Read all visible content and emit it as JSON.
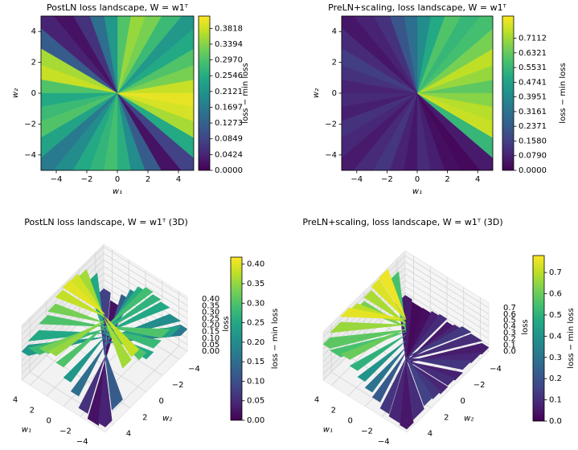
{
  "chart_data": [
    {
      "type": "contour",
      "title": "PostLN loss landscape, W = w1ᵀ",
      "xlabel": "w₁",
      "ylabel": "w₂",
      "xlim": [
        -5,
        5
      ],
      "ylim": [
        -5,
        5
      ],
      "xticks": [
        {
          "value": -4,
          "label": "−4"
        },
        {
          "value": -2,
          "label": "−2"
        },
        0,
        2,
        4
      ],
      "yticks": [
        {
          "value": -4,
          "label": "−4"
        },
        {
          "value": -2,
          "label": "−2"
        },
        0,
        2,
        4
      ],
      "angles": [
        0,
        10,
        20,
        30,
        40,
        50,
        60,
        70,
        80,
        90,
        100,
        110,
        120,
        130,
        140,
        150,
        160,
        170,
        180,
        190,
        200,
        210,
        220,
        230,
        240,
        250,
        260,
        270,
        280,
        290,
        300,
        310,
        320,
        330,
        340,
        350,
        360
      ],
      "values": [
        0.38,
        0.33,
        0.3,
        0.25,
        0.22,
        0.28,
        0.33,
        0.35,
        0.3,
        0.22,
        0.15,
        0.06,
        0.02,
        0.04,
        0.12,
        0.36,
        0.38,
        0.3,
        0.25,
        0.28,
        0.3,
        0.24,
        0.17,
        0.2,
        0.25,
        0.27,
        0.29,
        0.26,
        0.2,
        0.12,
        0.02,
        0.08,
        0.25,
        0.36,
        0.39,
        0.4
      ],
      "colormap": "viridis",
      "clim": [
        0,
        0.415
      ],
      "clabel": "loss − min loss",
      "cticks": [
        {
          "value": 0,
          "label": "0.0000"
        },
        0.0424,
        0.0849,
        0.1273,
        0.1697,
        0.2121,
        0.2546,
        {
          "value": 0.297,
          "label": "0.2970"
        },
        0.3394,
        0.3818
      ]
    },
    {
      "type": "contour",
      "title": "PreLN+scaling, loss landscape, W = w1ᵀ",
      "xlabel": "w₁",
      "ylabel": "w₂",
      "xlim": [
        -5,
        5
      ],
      "ylim": [
        -5,
        5
      ],
      "xticks": [
        {
          "value": -4,
          "label": "−4"
        },
        {
          "value": -2,
          "label": "−2"
        },
        0,
        2,
        4
      ],
      "yticks": [
        {
          "value": -4,
          "label": "−4"
        },
        {
          "value": -2,
          "label": "−2"
        },
        0,
        2,
        4
      ],
      "angles": [
        0,
        10,
        20,
        30,
        40,
        50,
        60,
        70,
        80,
        90,
        100,
        110,
        120,
        130,
        140,
        150,
        160,
        170,
        180,
        190,
        200,
        210,
        220,
        230,
        240,
        250,
        260,
        270,
        280,
        290,
        300,
        310,
        320,
        330,
        340,
        350,
        360
      ],
      "values": [
        0.62,
        0.7,
        0.75,
        0.66,
        0.58,
        0.55,
        0.6,
        0.5,
        0.4,
        0.3,
        0.22,
        0.12,
        0.08,
        0.05,
        0.1,
        0.15,
        0.12,
        0.08,
        0.1,
        0.07,
        0.12,
        0.09,
        0.06,
        0.1,
        0.13,
        0.08,
        0.05,
        0.1,
        0.07,
        0.03,
        0.02,
        0.06,
        0.55,
        0.76,
        0.74,
        0.68
      ],
      "colormap": "viridis",
      "clim": [
        0,
        0.83
      ],
      "clabel": "loss − min loss",
      "cticks": [
        {
          "value": 0,
          "label": "0.0000"
        },
        {
          "value": 0.079,
          "label": "0.0790"
        },
        {
          "value": 0.158,
          "label": "0.1580"
        },
        0.2371,
        0.3161,
        0.3951,
        0.4741,
        0.5531,
        0.6321,
        0.7112
      ]
    },
    {
      "type": "surface3d",
      "title": "PostLN loss landscape, W = w1ᵀ (3D)",
      "xlabel": "w₁",
      "ylabel": "w₂",
      "zlabel": "loss",
      "xlim": [
        -5,
        5
      ],
      "ylim": [
        -5,
        5
      ],
      "zlim": [
        0,
        0.42
      ],
      "xticks": [
        4,
        2,
        0,
        {
          "value": -2,
          "label": "−2"
        },
        {
          "value": -4,
          "label": "−4"
        }
      ],
      "yticks": [
        {
          "value": -4,
          "label": "−4"
        },
        {
          "value": -2,
          "label": "−2"
        },
        0,
        2,
        4
      ],
      "zticks": [
        {
          "value": 0,
          "label": "0.00"
        },
        0.05,
        {
          "value": 0.1,
          "label": "0.10"
        },
        0.15,
        {
          "value": 0.2,
          "label": "0.20"
        },
        0.25,
        {
          "value": 0.3,
          "label": "0.30"
        },
        0.35,
        {
          "value": 0.4,
          "label": "0.40"
        }
      ],
      "angles": [
        0,
        10,
        20,
        30,
        40,
        50,
        60,
        70,
        80,
        90,
        100,
        110,
        120,
        130,
        140,
        150,
        160,
        170,
        180,
        190,
        200,
        210,
        220,
        230,
        240,
        250,
        260,
        270,
        280,
        290,
        300,
        310,
        320,
        330,
        340,
        350,
        360
      ],
      "values": [
        0.38,
        0.33,
        0.3,
        0.25,
        0.22,
        0.28,
        0.33,
        0.35,
        0.3,
        0.22,
        0.15,
        0.06,
        0.02,
        0.04,
        0.12,
        0.36,
        0.38,
        0.3,
        0.25,
        0.28,
        0.3,
        0.24,
        0.17,
        0.2,
        0.25,
        0.27,
        0.29,
        0.26,
        0.2,
        0.12,
        0.02,
        0.08,
        0.25,
        0.36,
        0.39,
        0.4
      ],
      "colormap": "viridis",
      "clim": [
        0,
        0.418
      ],
      "clabel": "loss − min loss",
      "cticks": [
        {
          "value": 0,
          "label": "0.00"
        },
        0.05,
        {
          "value": 0.1,
          "label": "0.10"
        },
        0.15,
        {
          "value": 0.2,
          "label": "0.20"
        },
        0.25,
        {
          "value": 0.3,
          "label": "0.30"
        },
        0.35,
        {
          "value": 0.4,
          "label": "0.40"
        }
      ]
    },
    {
      "type": "surface3d",
      "title": "PreLN+scaling, loss landscape, W = w1ᵀ (3D)",
      "xlabel": "w₁",
      "ylabel": "w₂",
      "zlabel": "loss",
      "xlim": [
        -5,
        5
      ],
      "ylim": [
        -5,
        5
      ],
      "zlim": [
        0,
        0.78
      ],
      "xticks": [
        4,
        2,
        0,
        {
          "value": -2,
          "label": "−2"
        },
        {
          "value": -4,
          "label": "−4"
        }
      ],
      "yticks": [
        {
          "value": -4,
          "label": "−4"
        },
        {
          "value": -2,
          "label": "−2"
        },
        0,
        2,
        4
      ],
      "zticks": [
        {
          "value": 0,
          "label": "0.0"
        },
        0.1,
        0.2,
        0.3,
        0.4,
        0.5,
        0.6,
        0.7
      ],
      "angles": [
        0,
        10,
        20,
        30,
        40,
        50,
        60,
        70,
        80,
        90,
        100,
        110,
        120,
        130,
        140,
        150,
        160,
        170,
        180,
        190,
        200,
        210,
        220,
        230,
        240,
        250,
        260,
        270,
        280,
        290,
        300,
        310,
        320,
        330,
        340,
        350,
        360
      ],
      "values": [
        0.62,
        0.7,
        0.75,
        0.66,
        0.58,
        0.55,
        0.6,
        0.5,
        0.4,
        0.3,
        0.22,
        0.12,
        0.08,
        0.05,
        0.1,
        0.15,
        0.12,
        0.08,
        0.1,
        0.07,
        0.12,
        0.09,
        0.06,
        0.1,
        0.13,
        0.08,
        0.05,
        0.1,
        0.07,
        0.03,
        0.02,
        0.06,
        0.55,
        0.76,
        0.74,
        0.68
      ],
      "colormap": "viridis",
      "clim": [
        0,
        0.78
      ],
      "clabel": "loss − min loss",
      "cticks": [
        {
          "value": 0,
          "label": "0.0"
        },
        0.1,
        0.2,
        0.3,
        0.4,
        0.5,
        0.6,
        0.7
      ]
    }
  ]
}
